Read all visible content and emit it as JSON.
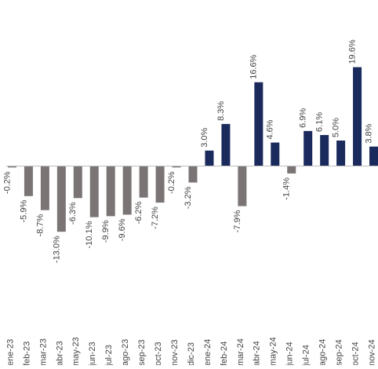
{
  "chart_data": {
    "type": "bar",
    "title": "",
    "xlabel": "",
    "ylabel": "",
    "grid": false,
    "legend": "none",
    "categories": [
      "ene-23",
      "feb-23",
      "mar-23",
      "abr-23",
      "may-23",
      "jun-23",
      "jul-23",
      "ago-23",
      "sep-23",
      "oct-23",
      "nov-23",
      "dic-23",
      "ene-24",
      "feb-24",
      "mar-24",
      "abr-24",
      "may-24",
      "jun-24",
      "jul-24",
      "ago-24",
      "sep-24",
      "oct-24",
      "nov-24"
    ],
    "values": [
      -0.2,
      -5.9,
      -8.7,
      -13.0,
      -6.3,
      -10.1,
      -9.9,
      -9.6,
      -6.2,
      -7.2,
      -0.2,
      -3.2,
      3.0,
      8.3,
      -7.9,
      16.6,
      4.6,
      -1.4,
      6.9,
      6.1,
      5.0,
      19.6,
      3.8
    ],
    "data_labels": [
      "-0.2%",
      "-5.9%",
      "-8.7%",
      "-13.0%",
      "-6.3%",
      "-10.1%",
      "-9.9%",
      "-9.6%",
      "-6.2%",
      "-7.2%",
      "-0.2%",
      "-3.2%",
      "3.0%",
      "8.3%",
      "-7.9%",
      "16.6%",
      "4.6%",
      "-1.4%",
      "6.9%",
      "6.1%",
      "5.0%",
      "19.6%",
      "3.8%"
    ],
    "ylim": [
      -13.0,
      19.6
    ]
  },
  "colors": {
    "year_2023": "#7a7574",
    "year_2024_positive": "#1b2a5c",
    "year_2024_negative": "#7a7574",
    "axis": "#bfbfbf",
    "text": "#444444"
  }
}
